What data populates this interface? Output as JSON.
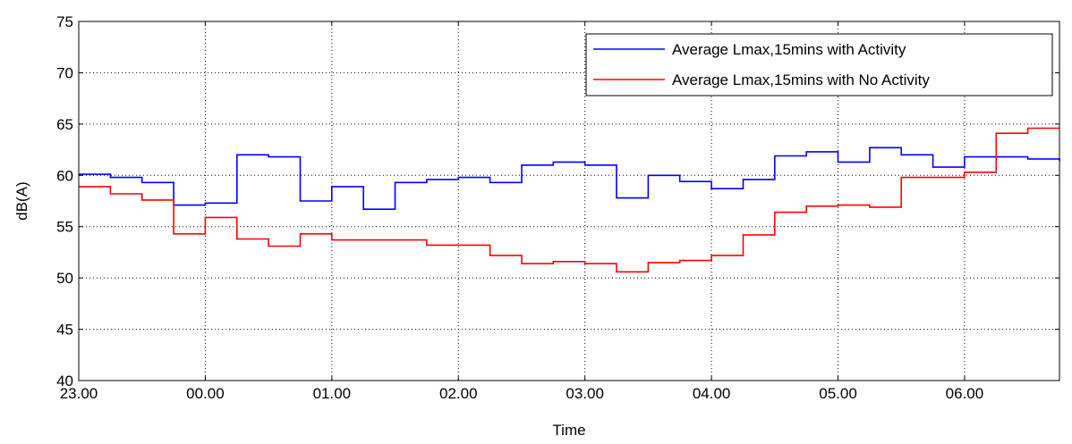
{
  "chart_data": {
    "type": "line",
    "step": true,
    "title": "",
    "xlabel": "Time",
    "ylabel": "dB(A)",
    "grid": true,
    "legend_position": "top-right",
    "xlim": [
      0,
      31
    ],
    "ylim": [
      40,
      75
    ],
    "x_ticks": [
      {
        "label": "23.00",
        "x": 0
      },
      {
        "label": "00.00",
        "x": 4
      },
      {
        "label": "01.00",
        "x": 8
      },
      {
        "label": "02.00",
        "x": 12
      },
      {
        "label": "03.00",
        "x": 16
      },
      {
        "label": "04.00",
        "x": 20
      },
      {
        "label": "05.00",
        "x": 24
      },
      {
        "label": "06.00",
        "x": 28
      }
    ],
    "y_ticks": [
      40,
      45,
      50,
      55,
      60,
      65,
      70,
      75
    ],
    "x_unit": "quarter-hour intervals from 23.00",
    "series": [
      {
        "name": "Average Lmax,15mins with Activity",
        "color": "#0000ff",
        "values": [
          60.1,
          59.8,
          59.3,
          57.1,
          57.3,
          62.0,
          61.8,
          57.5,
          58.9,
          56.7,
          59.3,
          59.6,
          59.8,
          59.3,
          61.0,
          61.3,
          61.0,
          57.8,
          60.0,
          59.4,
          58.7,
          59.6,
          61.9,
          62.3,
          61.3,
          62.7,
          62.0,
          60.8,
          61.8,
          61.8,
          61.6,
          61.4
        ]
      },
      {
        "name": "Average Lmax,15mins with No Activity",
        "color": "#ff0000",
        "values": [
          58.9,
          58.2,
          57.6,
          54.3,
          55.9,
          53.8,
          53.1,
          54.3,
          53.7,
          53.7,
          53.7,
          53.2,
          53.2,
          52.2,
          51.4,
          51.6,
          51.4,
          50.6,
          51.5,
          51.7,
          52.2,
          54.2,
          56.4,
          57.0,
          57.1,
          56.9,
          59.8,
          59.8,
          60.3,
          64.1,
          64.6,
          64.6
        ]
      }
    ]
  }
}
